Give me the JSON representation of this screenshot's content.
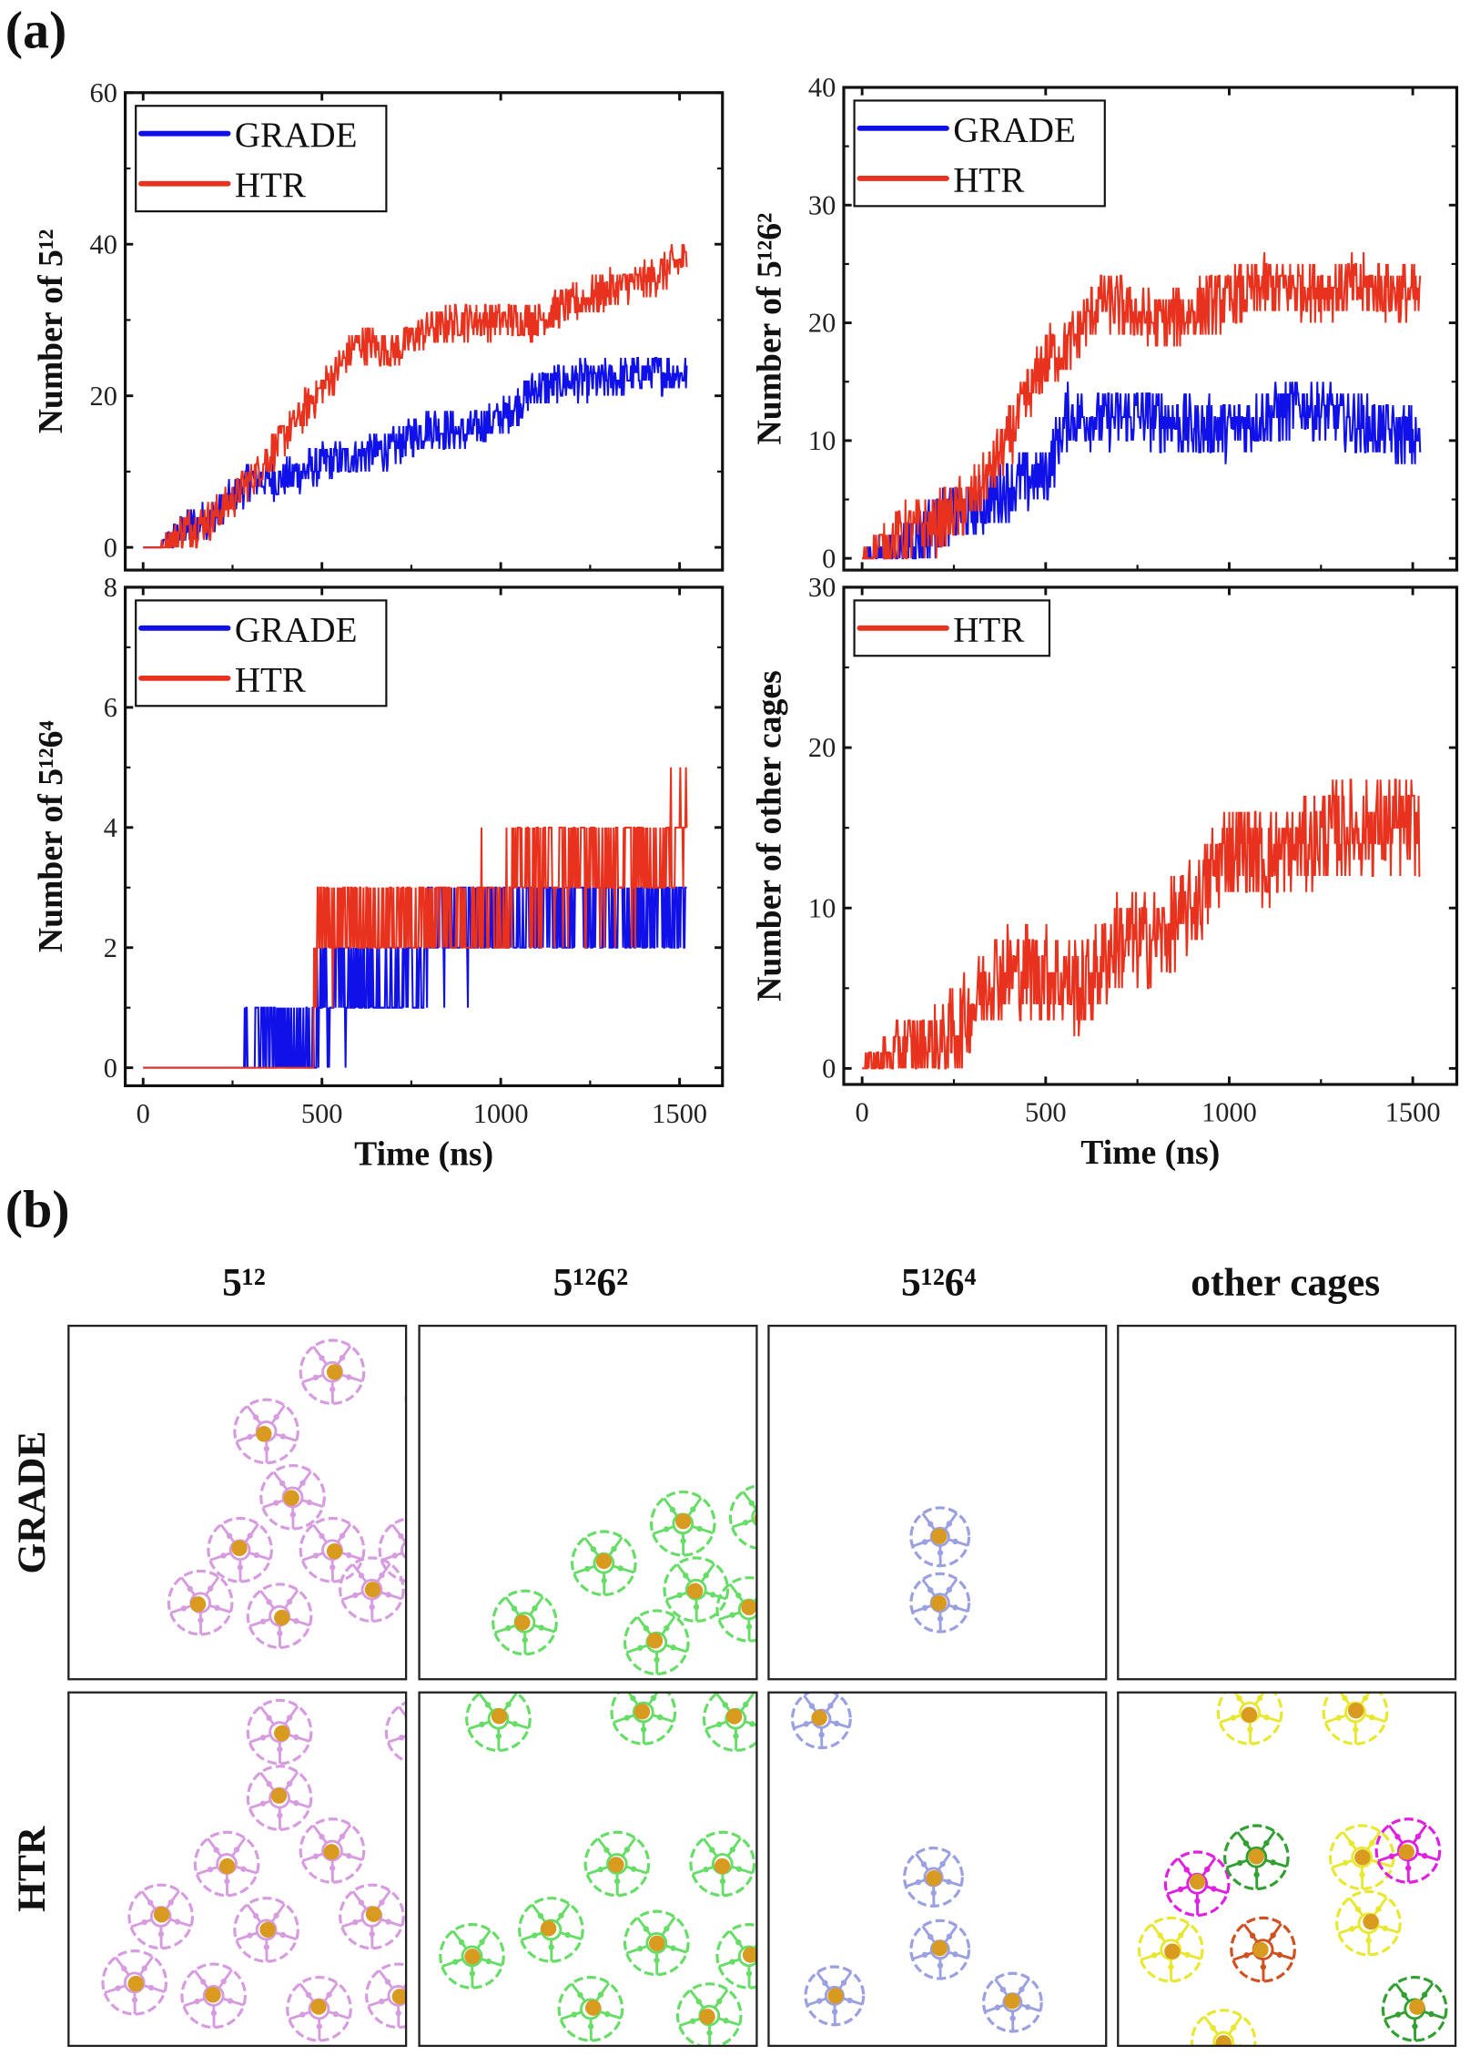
{
  "panel_labels": {
    "a": "(a)",
    "b": "(b)"
  },
  "colors": {
    "GRADE": "#1010e8",
    "HTR": "#e8321e",
    "cage_5_12": "#d79ce0",
    "cage_5_12_6_2": "#66dd66",
    "cage_5_12_6_4": "#9aa0e0",
    "guest": "#d99a20",
    "other_yellow": "#e8e830",
    "other_magenta": "#e020e0",
    "other_green": "#30a030",
    "other_orange": "#d05020"
  },
  "chart_data": [
    {
      "type": "line",
      "xlabel": "",
      "ylabel": "Number of 5¹²",
      "xlim": [
        -50,
        1620
      ],
      "ylim": [
        -3,
        60
      ],
      "xticks": [
        0,
        500,
        1000,
        1500
      ],
      "yticks": [
        0,
        20,
        40,
        60
      ],
      "show_xticklabels": false,
      "legend": "top-left",
      "grid": false,
      "series": [
        {
          "name": "GRADE",
          "color": "#1010e8",
          "trend": [
            [
              0,
              0
            ],
            [
              50,
              0
            ],
            [
              100,
              2
            ],
            [
              200,
              4
            ],
            [
              300,
              9
            ],
            [
              400,
              9
            ],
            [
              500,
              11
            ],
            [
              600,
              12
            ],
            [
              700,
              13
            ],
            [
              800,
              16
            ],
            [
              900,
              15
            ],
            [
              1000,
              17
            ],
            [
              1100,
              21
            ],
            [
              1200,
              22
            ],
            [
              1300,
              22
            ],
            [
              1400,
              23
            ],
            [
              1520,
              23
            ]
          ]
        },
        {
          "name": "HTR",
          "color": "#e8321e",
          "trend": [
            [
              0,
              0
            ],
            [
              50,
              0
            ],
            [
              100,
              2
            ],
            [
              200,
              4
            ],
            [
              300,
              9
            ],
            [
              400,
              15
            ],
            [
              500,
              21
            ],
            [
              600,
              27
            ],
            [
              700,
              26
            ],
            [
              800,
              29
            ],
            [
              900,
              30
            ],
            [
              1000,
              30
            ],
            [
              1100,
              30
            ],
            [
              1200,
              32
            ],
            [
              1300,
              34
            ],
            [
              1400,
              35
            ],
            [
              1520,
              38
            ]
          ]
        }
      ]
    },
    {
      "type": "line",
      "xlabel": "",
      "ylabel": "Number of 5¹²6²",
      "xlim": [
        -50,
        1620
      ],
      "ylim": [
        -1,
        40
      ],
      "xticks": [
        0,
        500,
        1000,
        1500
      ],
      "yticks": [
        0,
        10,
        20,
        30,
        40
      ],
      "show_xticklabels": false,
      "legend": "top-left",
      "grid": false,
      "series": [
        {
          "name": "GRADE",
          "color": "#1010e8",
          "trend": [
            [
              0,
              0
            ],
            [
              100,
              1
            ],
            [
              200,
              3
            ],
            [
              300,
              4
            ],
            [
              400,
              6
            ],
            [
              500,
              7
            ],
            [
              560,
              12
            ],
            [
              700,
              12
            ],
            [
              800,
              12
            ],
            [
              900,
              11
            ],
            [
              1000,
              11
            ],
            [
              1100,
              12
            ],
            [
              1200,
              13
            ],
            [
              1300,
              12
            ],
            [
              1400,
              11
            ],
            [
              1520,
              10
            ]
          ]
        },
        {
          "name": "HTR",
          "color": "#e8321e",
          "trend": [
            [
              0,
              0
            ],
            [
              100,
              2
            ],
            [
              200,
              3
            ],
            [
              300,
              5
            ],
            [
              400,
              10
            ],
            [
              500,
              17
            ],
            [
              560,
              18
            ],
            [
              650,
              22
            ],
            [
              800,
              20
            ],
            [
              900,
              21
            ],
            [
              1000,
              22
            ],
            [
              1100,
              23
            ],
            [
              1200,
              23
            ],
            [
              1300,
              23
            ],
            [
              1400,
              23
            ],
            [
              1520,
              22
            ]
          ]
        }
      ]
    },
    {
      "type": "line",
      "xlabel": "Time (ns)",
      "ylabel": "Number of 5¹²6⁴",
      "xlim": [
        -50,
        1620
      ],
      "ylim": [
        -0.3,
        8
      ],
      "xticks": [
        0,
        500,
        1000,
        1500
      ],
      "yticks": [
        0,
        2,
        4,
        6,
        8
      ],
      "show_xticklabels": true,
      "legend": "top-left",
      "grid": false,
      "series": [
        {
          "name": "GRADE",
          "color": "#1010e8",
          "trend": [
            [
              0,
              0
            ],
            [
              280,
              0
            ],
            [
              290,
              0.4
            ],
            [
              480,
              0.5
            ],
            [
              500,
              1.2
            ],
            [
              780,
              1.5
            ],
            [
              800,
              2.3
            ],
            [
              1500,
              2.6
            ],
            [
              1520,
              2.6
            ]
          ]
        },
        {
          "name": "HTR",
          "color": "#e8321e",
          "trend": [
            [
              0,
              0
            ],
            [
              470,
              0
            ],
            [
              490,
              2.3
            ],
            [
              1000,
              2.7
            ],
            [
              1050,
              3.2
            ],
            [
              1450,
              3.4
            ],
            [
              1520,
              4.3
            ]
          ]
        }
      ]
    },
    {
      "type": "line",
      "xlabel": "Time (ns)",
      "ylabel": "Number of other cages",
      "xlim": [
        -50,
        1620
      ],
      "ylim": [
        -1,
        30
      ],
      "xticks": [
        0,
        500,
        1000,
        1500
      ],
      "yticks": [
        0,
        10,
        20,
        30
      ],
      "show_xticklabels": true,
      "legend": "top-left",
      "grid": false,
      "series": [
        {
          "name": "HTR",
          "color": "#e8321e",
          "trend": [
            [
              0,
              0
            ],
            [
              100,
              1
            ],
            [
              250,
              2
            ],
            [
              350,
              6
            ],
            [
              500,
              6
            ],
            [
              600,
              5
            ],
            [
              700,
              8
            ],
            [
              800,
              8
            ],
            [
              900,
              10
            ],
            [
              1000,
              14
            ],
            [
              1100,
              13
            ],
            [
              1200,
              14
            ],
            [
              1300,
              15
            ],
            [
              1400,
              15
            ],
            [
              1520,
              15
            ]
          ]
        }
      ]
    }
  ],
  "grid_b": {
    "columns": [
      "5¹²",
      "5¹²6²",
      "5¹²6⁴",
      "other cages"
    ],
    "rows": [
      "GRADE",
      "HTR"
    ]
  }
}
